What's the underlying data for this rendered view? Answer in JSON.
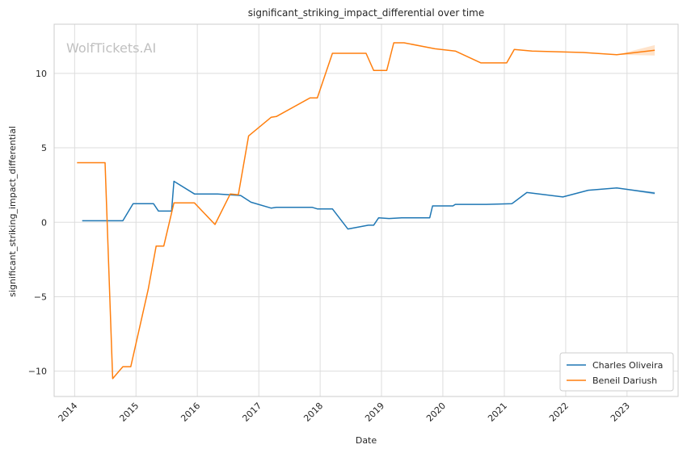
{
  "chart_data": {
    "type": "line",
    "title": "significant_striking_impact_differential over time",
    "xlabel": "Date",
    "ylabel": "significant_striking_impact_differential",
    "watermark": "WolfTickets.AI",
    "xlim": [
      "2013-09-01",
      "2023-11-01"
    ],
    "ylim": [
      -11.7,
      13.3
    ],
    "x_ticks": [
      {
        "date": "2014-01-01",
        "label": "2014"
      },
      {
        "date": "2015-01-01",
        "label": "2015"
      },
      {
        "date": "2016-01-01",
        "label": "2016"
      },
      {
        "date": "2017-01-01",
        "label": "2017"
      },
      {
        "date": "2018-01-01",
        "label": "2018"
      },
      {
        "date": "2019-01-01",
        "label": "2019"
      },
      {
        "date": "2020-01-01",
        "label": "2020"
      },
      {
        "date": "2021-01-01",
        "label": "2021"
      },
      {
        "date": "2022-01-01",
        "label": "2022"
      },
      {
        "date": "2023-01-01",
        "label": "2023"
      }
    ],
    "y_ticks": [
      {
        "value": 10,
        "label": "10"
      },
      {
        "value": 5,
        "label": "5"
      },
      {
        "value": 0,
        "label": "0"
      },
      {
        "value": -5,
        "label": "−5"
      },
      {
        "value": -10,
        "label": "−10"
      }
    ],
    "grid": true,
    "legend_position": "lower-right",
    "series": [
      {
        "name": "Charles Oliveira",
        "color": "#1f77b4",
        "points": [
          [
            "2014-02-15",
            0.1
          ],
          [
            "2014-10-15",
            0.1
          ],
          [
            "2014-12-15",
            1.25
          ],
          [
            "2015-04-15",
            1.25
          ],
          [
            "2015-05-15",
            0.75
          ],
          [
            "2015-08-01",
            0.75
          ],
          [
            "2015-08-15",
            2.75
          ],
          [
            "2015-12-15",
            1.9
          ],
          [
            "2016-05-01",
            1.9
          ],
          [
            "2016-09-15",
            1.8
          ],
          [
            "2016-11-15",
            1.35
          ],
          [
            "2017-03-15",
            0.95
          ],
          [
            "2017-04-15",
            1.0
          ],
          [
            "2017-11-15",
            1.0
          ],
          [
            "2017-12-15",
            0.9
          ],
          [
            "2018-03-15",
            0.9
          ],
          [
            "2018-06-15",
            -0.45
          ],
          [
            "2018-10-15",
            -0.2
          ],
          [
            "2018-11-15",
            -0.2
          ],
          [
            "2018-12-15",
            0.3
          ],
          [
            "2019-02-15",
            0.25
          ],
          [
            "2019-05-01",
            0.3
          ],
          [
            "2019-10-15",
            0.3
          ],
          [
            "2019-11-01",
            1.1
          ],
          [
            "2020-03-01",
            1.1
          ],
          [
            "2020-03-15",
            1.2
          ],
          [
            "2020-09-15",
            1.2
          ],
          [
            "2021-02-15",
            1.25
          ],
          [
            "2021-05-15",
            2.0
          ],
          [
            "2021-12-15",
            1.7
          ],
          [
            "2022-05-15",
            2.15
          ],
          [
            "2022-11-01",
            2.3
          ],
          [
            "2023-06-15",
            1.95
          ]
        ]
      },
      {
        "name": "Beneil Dariush",
        "color": "#ff7f0e",
        "points": [
          [
            "2014-01-15",
            4.0
          ],
          [
            "2014-07-01",
            4.0
          ],
          [
            "2014-08-15",
            -10.5
          ],
          [
            "2014-10-15",
            -9.7
          ],
          [
            "2014-12-01",
            -9.7
          ],
          [
            "2015-03-15",
            -4.5
          ],
          [
            "2015-05-01",
            -1.6
          ],
          [
            "2015-06-15",
            -1.6
          ],
          [
            "2015-08-15",
            1.3
          ],
          [
            "2015-12-15",
            1.3
          ],
          [
            "2016-04-15",
            -0.15
          ],
          [
            "2016-07-15",
            1.9
          ],
          [
            "2016-09-01",
            1.85
          ],
          [
            "2016-11-01",
            5.8
          ],
          [
            "2017-03-15",
            7.05
          ],
          [
            "2017-04-15",
            7.1
          ],
          [
            "2017-11-01",
            8.35
          ],
          [
            "2017-12-15",
            8.35
          ],
          [
            "2018-03-15",
            11.35
          ],
          [
            "2018-10-01",
            11.35
          ],
          [
            "2018-11-15",
            10.2
          ],
          [
            "2019-02-01",
            10.2
          ],
          [
            "2019-03-15",
            12.05
          ],
          [
            "2019-05-15",
            12.05
          ],
          [
            "2019-11-15",
            11.65
          ],
          [
            "2020-03-15",
            11.5
          ],
          [
            "2020-08-15",
            10.7
          ],
          [
            "2021-01-15",
            10.7
          ],
          [
            "2021-03-01",
            11.6
          ],
          [
            "2021-06-15",
            11.5
          ],
          [
            "2022-04-15",
            11.4
          ],
          [
            "2022-11-01",
            11.25
          ],
          [
            "2023-06-15",
            11.55
          ]
        ]
      }
    ]
  }
}
